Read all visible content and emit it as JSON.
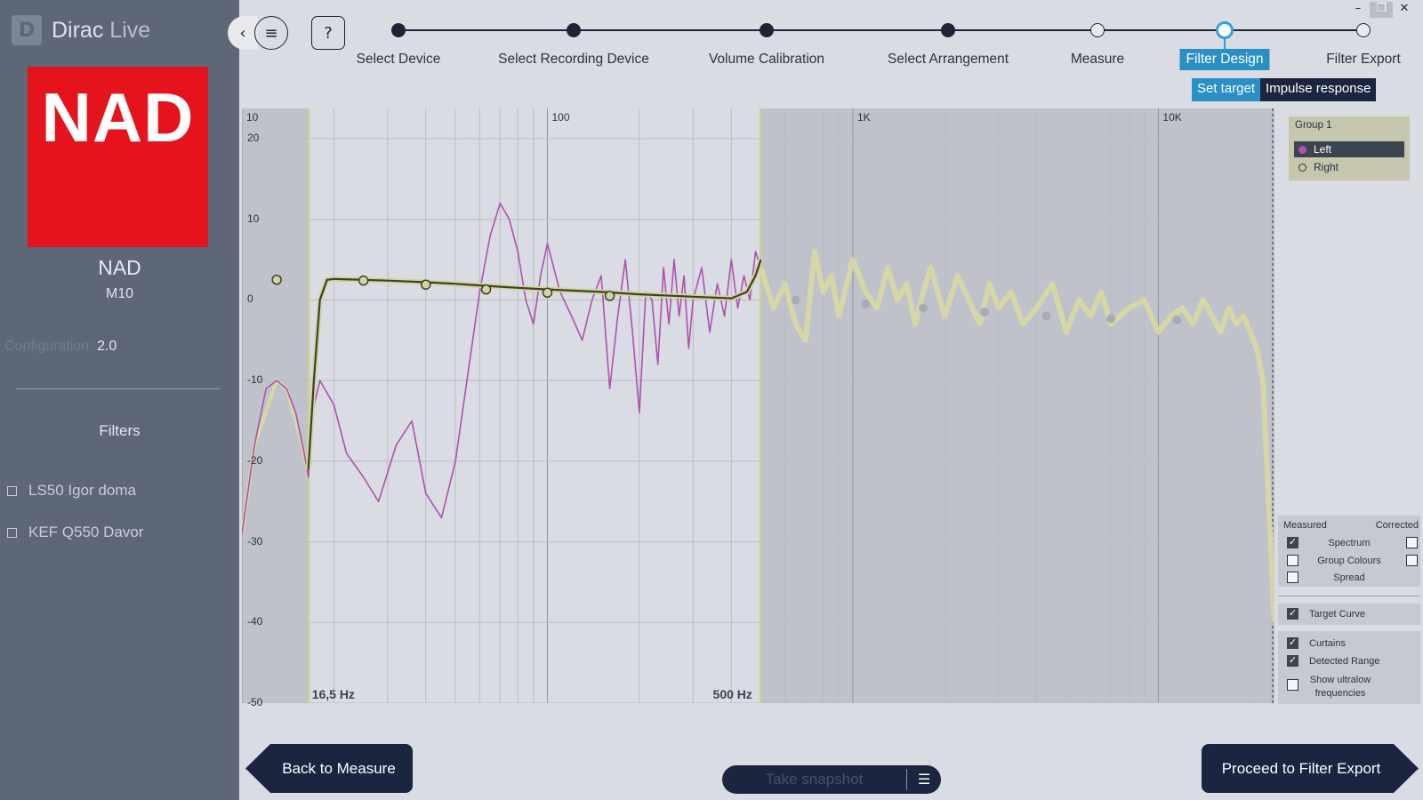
{
  "app": {
    "brand_main": "Dirac",
    "brand_light": " Live"
  },
  "window_controls": {
    "minimize": "–",
    "maximize": "❐",
    "close": "✕"
  },
  "sidebar": {
    "device_logo_text": "NAD",
    "device_brand": "NAD",
    "device_model": "M10",
    "config_label": "Configuration:",
    "config_value": " 2.0",
    "filters_title": "Filters",
    "filters": [
      {
        "label": "LS50 Igor doma"
      },
      {
        "label": "KEF Q550 Davor"
      }
    ]
  },
  "toolbar": {
    "collapse_icon": "‹",
    "menu_icon": "≡",
    "help_icon": "?"
  },
  "steps": [
    {
      "label": "Select Device",
      "state": "done"
    },
    {
      "label": "Select Recording Device",
      "state": "done"
    },
    {
      "label": "Volume Calibration",
      "state": "done"
    },
    {
      "label": "Select Arrangement",
      "state": "done"
    },
    {
      "label": "Measure",
      "state": "open"
    },
    {
      "label": "Filter Design",
      "state": "active"
    },
    {
      "label": "Filter Export",
      "state": "open"
    }
  ],
  "subtabs": {
    "set_target": "Set target",
    "impulse_response": "Impulse response"
  },
  "chart_data": {
    "type": "line",
    "x_scale": "log",
    "xlim": [
      10,
      24000
    ],
    "ylim": [
      -50,
      20
    ],
    "x_tick_labels": [
      "10",
      "100",
      "1K",
      "10K"
    ],
    "y_tick_labels": [
      "20",
      "10",
      "0",
      "-10",
      "-20",
      "-30",
      "-40",
      "-50"
    ],
    "curtain_low_label": "16,5 Hz",
    "curtain_high_label": "500 Hz",
    "curtain_low_hz": 16.5,
    "curtain_high_hz": 500,
    "series": [
      {
        "x": [
          10,
          11,
          12,
          13,
          14,
          15,
          16,
          16.5,
          17,
          18,
          20,
          22,
          25,
          28,
          32,
          36,
          40,
          45,
          50,
          55,
          60,
          65,
          70,
          75,
          80,
          85,
          90,
          95,
          100,
          110,
          120,
          130,
          140,
          150,
          160,
          170,
          180,
          190,
          200,
          210,
          220,
          230,
          240,
          250,
          260,
          270,
          280,
          290,
          300,
          320,
          340,
          360,
          380,
          400,
          420,
          440,
          460,
          480,
          500
        ],
        "y": [
          -29,
          -18,
          -11,
          -10,
          -11,
          -14,
          -19,
          -22,
          -14,
          -10,
          -13,
          -19,
          -22,
          -25,
          -18,
          -15,
          -24,
          -27,
          -20,
          -9,
          1,
          8,
          12,
          10,
          6,
          0,
          -3,
          3,
          7,
          1,
          -2,
          -5,
          0,
          3,
          -11,
          -2,
          5,
          -4,
          -14,
          1,
          0,
          -8,
          4,
          -3,
          5,
          -2,
          3,
          -6,
          0,
          4,
          -4,
          2,
          -2,
          5,
          -1,
          3,
          0,
          6,
          4
        ]
      },
      {
        "x": [
          500,
          550,
          600,
          650,
          700,
          750,
          800,
          850,
          900,
          1000,
          1100,
          1200,
          1300,
          1400,
          1500,
          1600,
          1700,
          1800,
          2000,
          2200,
          2400,
          2600,
          2800,
          3000,
          3300,
          3600,
          4000,
          4500,
          5000,
          5500,
          6000,
          6500,
          7000,
          8000,
          9000,
          10000,
          11000,
          12000,
          13000,
          14000,
          15000,
          16000,
          17000,
          18000,
          19000,
          20000,
          21000,
          22000,
          24000
        ],
        "y": [
          4,
          -1,
          2,
          -3,
          -5,
          6,
          1,
          3,
          -2,
          5,
          1,
          -1,
          4,
          0,
          2,
          -3,
          1,
          4,
          -2,
          3,
          0,
          -3,
          2,
          -1,
          1,
          -3,
          -1,
          2,
          -4,
          0,
          -2,
          1,
          -3,
          -1,
          0,
          -4,
          -2,
          -1,
          -3,
          0,
          -2,
          -4,
          -1,
          -3,
          -2,
          -4,
          -6,
          -10,
          -40
        ]
      },
      {
        "x": [
          16.5,
          17.2,
          18,
          19,
          20,
          25,
          30,
          40,
          50,
          60,
          80,
          100,
          150,
          200,
          300,
          400,
          450,
          480,
          500
        ],
        "y": [
          -21,
          -10,
          0,
          2.5,
          2.6,
          2.5,
          2.4,
          2.2,
          2.0,
          1.8,
          1.5,
          1.3,
          1.0,
          0.7,
          0.4,
          0.2,
          1.0,
          3.0,
          5.0
        ]
      }
    ],
    "target_points": [
      {
        "x": 13,
        "y": 2.5
      },
      {
        "x": 25,
        "y": 2.4
      },
      {
        "x": 40,
        "y": 1.9
      },
      {
        "x": 63,
        "y": 1.3
      },
      {
        "x": 100,
        "y": 0.9
      },
      {
        "x": 160,
        "y": 0.5
      },
      {
        "x": 650,
        "y": 0
      },
      {
        "x": 1100,
        "y": -0.5
      },
      {
        "x": 1700,
        "y": -1
      },
      {
        "x": 2700,
        "y": -1.5
      },
      {
        "x": 4300,
        "y": -2
      },
      {
        "x": 7000,
        "y": -2.3
      },
      {
        "x": 11500,
        "y": -2.5
      }
    ],
    "colors": {
      "measured_left": "#b04fb0",
      "measured_right": "#d9d8a2",
      "target": "#3c4220",
      "target_outline": "#d3d3a8",
      "curtain": "#bfc2ca",
      "curtain_edge": "#c9cd9c",
      "grid": "#b8bcc3",
      "plot_bg": "#d9dce2"
    }
  },
  "group_panel": {
    "title": "Group 1",
    "left_label": "Left",
    "right_label": "Right"
  },
  "display_panel": {
    "measured_header": "Measured",
    "corrected_header": "Corrected",
    "spectrum": "Spectrum",
    "group_colours": "Group Colours",
    "spread": "Spread",
    "target_curve": "Target Curve",
    "curtains": "Curtains",
    "detected_range": "Detected Range",
    "show_ultralow": "Show ultralow frequencies",
    "check_mark": "✓"
  },
  "bottom": {
    "back_label": "Back to Measure",
    "snapshot_label": "Take snapshot",
    "snapshot_icon": "☰",
    "proceed_label": "Proceed to Filter Export"
  }
}
